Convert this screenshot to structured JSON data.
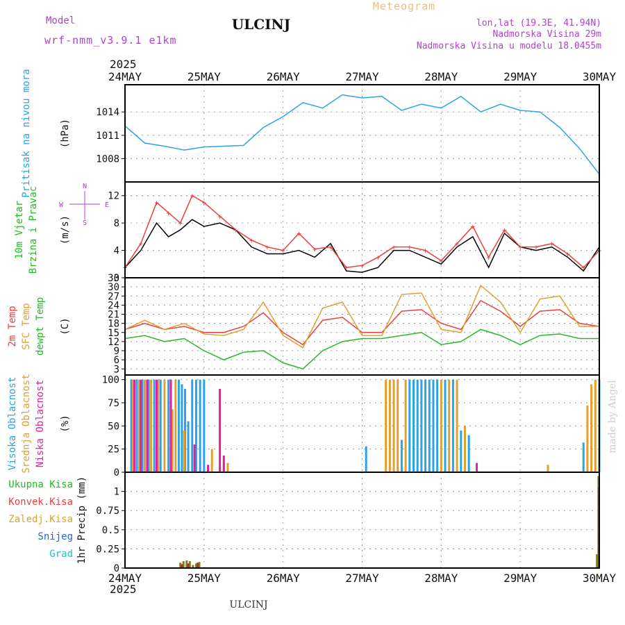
{
  "header": {
    "model_label": "Model",
    "model_name": "wrf-nmm_v3.9.1  e1km",
    "station": "ULCINJ",
    "meteogram": "Meteogram",
    "lonlat": "lon,lat (19.3E, 41.94N)",
    "elevation": "Nadmorska Visina 29m",
    "model_elevation": "Nadmorska Visina u modelu 18.0455m",
    "footer_station": "ULCINJ",
    "watermark": "made by Angel"
  },
  "colors": {
    "pressure": "#2aa4e6",
    "purple": "#b040d0",
    "green": "#22bb22",
    "red": "#e84040",
    "orange": "#e0a030",
    "blue": "#3060d0",
    "cyan": "#20c0c0",
    "magenta": "#e020a0",
    "black": "#000000",
    "olive": "#808020",
    "darkred": "#b03020"
  },
  "time_axis": {
    "year": "2025",
    "days": [
      "24MAY",
      "25MAY",
      "26MAY",
      "27MAY",
      "28MAY",
      "29MAY",
      "30MAY"
    ]
  },
  "chart_data": [
    {
      "id": "pressure",
      "type": "line",
      "title_lines": [
        "Pritisak na nivou mora"
      ],
      "ylabel": "(hPa)",
      "ylim": [
        1005,
        1017.5
      ],
      "yticks": [
        1008,
        1011,
        1014
      ],
      "grid": true,
      "x": [
        0,
        0.25,
        0.5,
        0.75,
        1.0,
        1.25,
        1.5,
        1.75,
        2.0,
        2.25,
        2.5,
        2.75,
        3.0,
        3.25,
        3.5,
        3.75,
        4.0,
        4.25,
        4.5,
        4.75,
        5.0,
        5.25,
        5.5,
        5.75,
        6.0
      ],
      "values": [
        1012.2,
        1010.0,
        1009.6,
        1009.1,
        1009.5,
        1009.6,
        1009.7,
        1012.0,
        1013.4,
        1015.2,
        1014.5,
        1016.2,
        1015.8,
        1016.0,
        1014.2,
        1015.0,
        1014.5,
        1016.0,
        1014.0,
        1015.0,
        1014.2,
        1014.0,
        1012.0,
        1009.3,
        1006.0
      ]
    },
    {
      "id": "wind",
      "type": "line",
      "title_lines": [
        "10m Vjetar",
        "Brzina i Pravac"
      ],
      "ylabel": "(m/s)",
      "ylim": [
        0,
        14
      ],
      "yticks": [
        0,
        4,
        8,
        12
      ],
      "grid": true,
      "compass_labels": [
        "N",
        "W",
        "E",
        "S"
      ],
      "x": [
        0,
        0.2,
        0.4,
        0.55,
        0.7,
        0.85,
        1.0,
        1.2,
        1.4,
        1.6,
        1.8,
        2.0,
        2.2,
        2.4,
        2.6,
        2.8,
        3.0,
        3.2,
        3.4,
        3.6,
        3.8,
        4.0,
        4.2,
        4.4,
        4.6,
        4.8,
        5.0,
        5.2,
        5.4,
        5.6,
        5.8,
        6.0
      ],
      "series": [
        {
          "name": "",
          "color": "black",
          "values": [
            1.5,
            4,
            8,
            6,
            7,
            8.5,
            7.5,
            8,
            7,
            4.5,
            3.5,
            3.5,
            4,
            3,
            5,
            1,
            0.8,
            1.5,
            4,
            4,
            3,
            2,
            4.5,
            6,
            1.5,
            6.5,
            4.5,
            4,
            4.5,
            3,
            1,
            4.5
          ]
        },
        {
          "name": "",
          "color": "red",
          "values": [
            1.5,
            5,
            11,
            9.5,
            8,
            12,
            11,
            9,
            7,
            5.5,
            4.5,
            4,
            6.5,
            4.2,
            4.5,
            1.5,
            1.8,
            3,
            4.5,
            4.5,
            4,
            2.5,
            5,
            7.5,
            3,
            7,
            4.5,
            4.5,
            5,
            3.5,
            1.5,
            4
          ]
        }
      ]
    },
    {
      "id": "temperature",
      "type": "line",
      "title_lines": [
        "2m Temp",
        "SFC Temp",
        "dewpt Temp"
      ],
      "ylabel": "(C)",
      "ylim": [
        1,
        33
      ],
      "yticks": [
        3,
        6,
        9,
        12,
        15,
        18,
        21,
        24,
        27,
        30,
        33
      ],
      "grid": true,
      "x": [
        0,
        0.25,
        0.5,
        0.75,
        1.0,
        1.25,
        1.5,
        1.75,
        2.0,
        2.25,
        2.5,
        2.75,
        3.0,
        3.25,
        3.5,
        3.75,
        4.0,
        4.25,
        4.5,
        4.75,
        5.0,
        5.25,
        5.5,
        5.75,
        6.0
      ],
      "series": [
        {
          "name": "2m Temp",
          "color": "red",
          "values": [
            16,
            18,
            16,
            17,
            15,
            15,
            17,
            21.5,
            15,
            11,
            19,
            20,
            15,
            15,
            22,
            22.5,
            18,
            16,
            25.5,
            22,
            17,
            22,
            22.5,
            18,
            17
          ]
        },
        {
          "name": "SFC Temp",
          "color": "orange",
          "values": [
            16,
            19,
            16,
            18,
            14.5,
            14,
            16,
            25,
            14,
            10,
            23,
            25,
            14,
            14,
            27.5,
            28,
            16,
            15,
            30.5,
            25,
            15,
            26,
            27,
            17,
            17
          ]
        },
        {
          "name": "dewpt Temp",
          "color": "green",
          "values": [
            13,
            14,
            12,
            13,
            9,
            6,
            8.5,
            9,
            5,
            3,
            9,
            12,
            13,
            13,
            14,
            15,
            11,
            12,
            16,
            14,
            11,
            14,
            14.5,
            13,
            13
          ]
        }
      ]
    },
    {
      "id": "cloud",
      "type": "bar",
      "title_lines": [
        "Visoka Oblacnost",
        "Srednja Oblacnost",
        "Niska Oblacnost"
      ],
      "ylabel": "(%)",
      "ylim": [
        0,
        105
      ],
      "yticks": [
        0,
        25,
        50,
        75,
        100
      ],
      "grid": true,
      "series": [
        {
          "name": "Visoka Oblacnost",
          "color": "pressure",
          "x": [
            0.08,
            0.15,
            0.22,
            0.3,
            0.37,
            0.45,
            0.55,
            0.68,
            0.72,
            0.76,
            0.8,
            0.85,
            0.9,
            0.95,
            1.0,
            3.05,
            3.5,
            3.6,
            3.65,
            3.7,
            3.75,
            3.8,
            3.85,
            3.9,
            3.95,
            4.05,
            4.15,
            4.25,
            4.35,
            5.8,
            6.0
          ],
          "values": [
            100,
            100,
            100,
            100,
            100,
            100,
            100,
            100,
            95,
            90,
            55,
            100,
            100,
            100,
            100,
            28,
            35,
            100,
            100,
            100,
            100,
            100,
            100,
            100,
            100,
            100,
            100,
            45,
            40,
            32,
            100
          ]
        },
        {
          "name": "Srednja Oblacnost",
          "color": "orange",
          "x": [
            0.1,
            0.18,
            0.25,
            0.33,
            0.42,
            0.5,
            0.6,
            0.64,
            0.75,
            1.1,
            1.25,
            1.3,
            3.3,
            3.35,
            3.4,
            3.45,
            3.55,
            4.0,
            4.1,
            4.2,
            4.3,
            5.35,
            5.85,
            5.9,
            5.95
          ],
          "values": [
            100,
            100,
            100,
            100,
            100,
            100,
            68,
            100,
            45,
            25,
            10,
            10,
            100,
            100,
            100,
            100,
            100,
            100,
            100,
            100,
            50,
            8,
            72,
            95,
            100
          ]
        },
        {
          "name": "Niska Oblacnost",
          "color": "magenta",
          "x": [
            0.12,
            0.2,
            0.28,
            0.4,
            0.58,
            0.88,
            1.05,
            1.2,
            1.25,
            4.45
          ],
          "values": [
            100,
            100,
            100,
            100,
            100,
            30,
            8,
            90,
            18,
            10
          ]
        }
      ]
    },
    {
      "id": "precip",
      "type": "bar",
      "title_lines": [
        "Ukupna Kisa",
        "Konvek.Kisa",
        "Zaledj.Kisa",
        "Snijeg",
        "Grad"
      ],
      "title_colors": [
        "green",
        "red",
        "orange",
        "blue",
        "cyan"
      ],
      "ylabel": "1hr Precip (mm)",
      "ylim": [
        0,
        1.25
      ],
      "yticks": [
        0,
        0.25,
        0.5,
        0.75,
        1
      ],
      "ytick_labels": [
        "0",
        "0.25",
        "0.5",
        "0.75",
        "1"
      ],
      "grid": true,
      "series": [
        {
          "name": "Ukupna Kisa",
          "color": "olive",
          "x": [
            0.7,
            0.74,
            0.78,
            0.82,
            0.86,
            0.9,
            0.94,
            5.97,
            5.99
          ],
          "values": [
            0.07,
            0.09,
            0.1,
            0.09,
            0.04,
            0.06,
            0.08,
            0.18,
            1.2
          ]
        },
        {
          "name": "Konvek.Kisa",
          "color": "darkred",
          "x": [
            0.72,
            0.8,
            0.92,
            5.995
          ],
          "values": [
            0.05,
            0.06,
            0.07,
            1.05
          ]
        }
      ]
    }
  ]
}
